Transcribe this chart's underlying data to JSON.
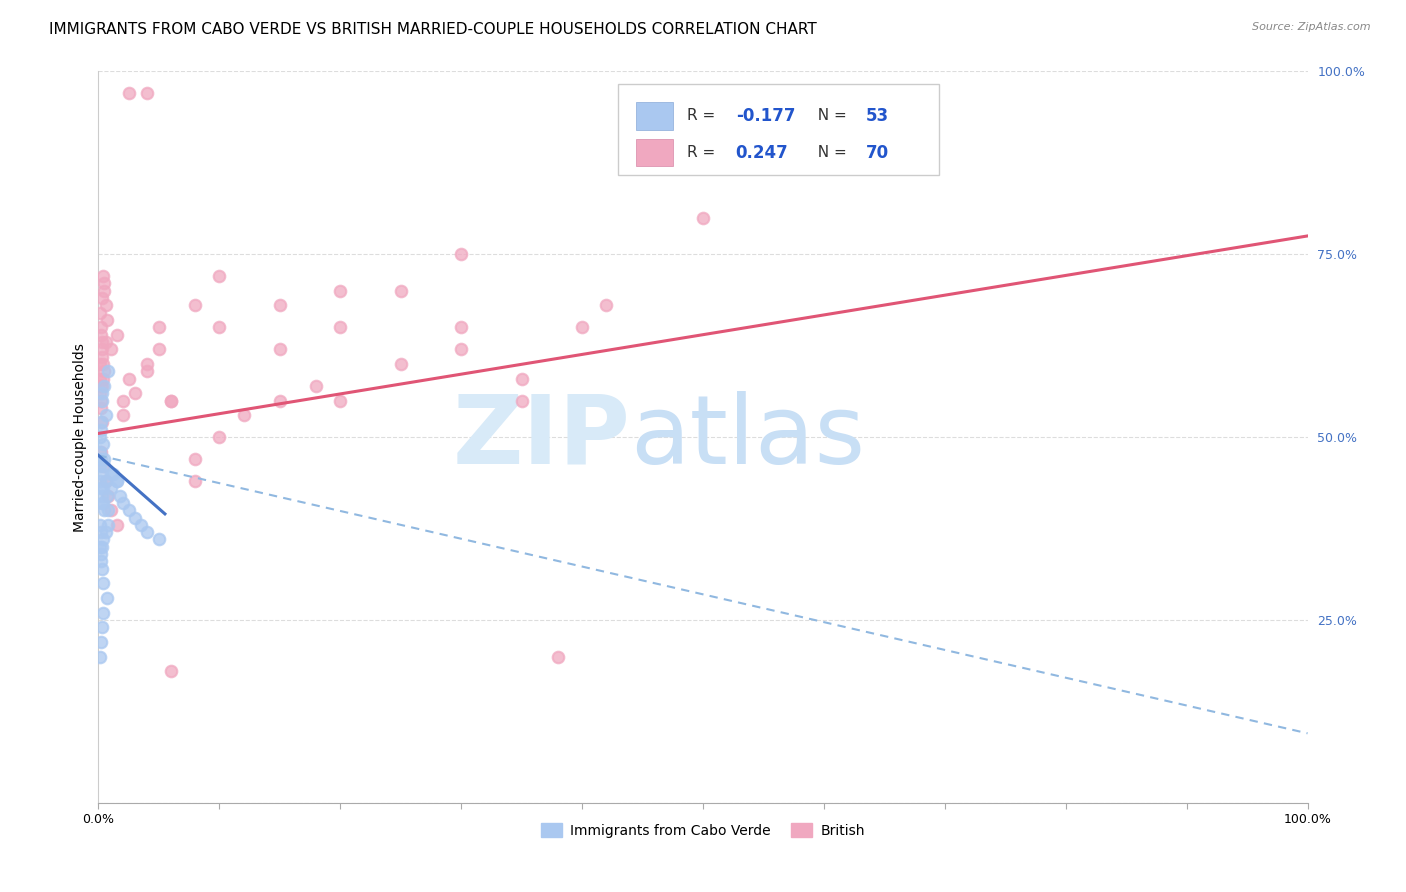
{
  "title": "IMMIGRANTS FROM CABO VERDE VS BRITISH MARRIED-COUPLE HOUSEHOLDS CORRELATION CHART",
  "source": "Source: ZipAtlas.com",
  "ylabel": "Married-couple Households",
  "y_ticks": [
    0.0,
    0.25,
    0.5,
    0.75,
    1.0
  ],
  "y_tick_labels": [
    "",
    "25.0%",
    "50.0%",
    "75.0%",
    "100.0%"
  ],
  "x_ticks": [
    0.0,
    0.1,
    0.2,
    0.3,
    0.4,
    0.5,
    0.6,
    0.7,
    0.8,
    0.9,
    1.0
  ],
  "x_tick_labels": [
    "0.0%",
    "",
    "",
    "",
    "",
    "",
    "",
    "",
    "",
    "",
    "100.0%"
  ],
  "cabo_verde_x": [
    0.001,
    0.002,
    0.003,
    0.001,
    0.005,
    0.006,
    0.003,
    0.002,
    0.008,
    0.004,
    0.001,
    0.002,
    0.003,
    0.005,
    0.001,
    0.007,
    0.004,
    0.003,
    0.002,
    0.001,
    0.006,
    0.004,
    0.005,
    0.003,
    0.002,
    0.008,
    0.012,
    0.015,
    0.01,
    0.018,
    0.02,
    0.025,
    0.03,
    0.035,
    0.04,
    0.05,
    0.001,
    0.002,
    0.003,
    0.004,
    0.005,
    0.003,
    0.002,
    0.004,
    0.006,
    0.008,
    0.01,
    0.015,
    0.001,
    0.002,
    0.003,
    0.004,
    0.007
  ],
  "cabo_verde_y": [
    0.48,
    0.52,
    0.55,
    0.5,
    0.57,
    0.53,
    0.56,
    0.51,
    0.59,
    0.49,
    0.44,
    0.43,
    0.42,
    0.4,
    0.38,
    0.42,
    0.41,
    0.45,
    0.37,
    0.46,
    0.44,
    0.43,
    0.46,
    0.41,
    0.47,
    0.4,
    0.45,
    0.44,
    0.43,
    0.42,
    0.41,
    0.4,
    0.39,
    0.38,
    0.37,
    0.36,
    0.35,
    0.34,
    0.32,
    0.3,
    0.47,
    0.35,
    0.33,
    0.36,
    0.37,
    0.38,
    0.45,
    0.44,
    0.2,
    0.22,
    0.24,
    0.26,
    0.28
  ],
  "british_x": [
    0.001,
    0.002,
    0.003,
    0.001,
    0.005,
    0.006,
    0.003,
    0.002,
    0.004,
    0.001,
    0.002,
    0.003,
    0.005,
    0.001,
    0.007,
    0.004,
    0.003,
    0.002,
    0.006,
    0.004,
    0.005,
    0.003,
    0.002,
    0.01,
    0.015,
    0.02,
    0.025,
    0.03,
    0.04,
    0.05,
    0.06,
    0.08,
    0.1,
    0.15,
    0.2,
    0.25,
    0.3,
    0.35,
    0.4,
    0.15,
    0.2,
    0.1,
    0.05,
    0.08,
    0.003,
    0.002,
    0.004,
    0.006,
    0.008,
    0.01,
    0.015,
    0.02,
    0.04,
    0.06,
    0.1,
    0.15,
    0.2,
    0.3,
    0.38,
    0.42,
    0.3,
    0.25,
    0.35,
    0.18,
    0.12,
    0.08,
    0.025,
    0.04,
    0.06,
    0.5
  ],
  "british_y": [
    0.6,
    0.65,
    0.63,
    0.58,
    0.7,
    0.68,
    0.62,
    0.55,
    0.72,
    0.67,
    0.64,
    0.61,
    0.59,
    0.56,
    0.66,
    0.6,
    0.57,
    0.54,
    0.63,
    0.58,
    0.71,
    0.69,
    0.57,
    0.62,
    0.64,
    0.55,
    0.58,
    0.56,
    0.6,
    0.62,
    0.55,
    0.68,
    0.65,
    0.62,
    0.55,
    0.6,
    0.62,
    0.58,
    0.65,
    0.68,
    0.7,
    0.72,
    0.65,
    0.44,
    0.52,
    0.48,
    0.46,
    0.44,
    0.42,
    0.4,
    0.38,
    0.53,
    0.59,
    0.55,
    0.5,
    0.55,
    0.65,
    0.65,
    0.2,
    0.68,
    0.75,
    0.7,
    0.55,
    0.57,
    0.53,
    0.47,
    0.97,
    0.97,
    0.18,
    0.8
  ],
  "cabo_verde_trend_x": [
    0.0,
    0.055
  ],
  "cabo_verde_trend_y": [
    0.475,
    0.395
  ],
  "british_trend_x": [
    0.0,
    1.0
  ],
  "british_trend_y": [
    0.505,
    0.775
  ],
  "dashed_trend_x": [
    0.0,
    1.0
  ],
  "dashed_trend_y": [
    0.475,
    0.095
  ],
  "bg_color": "#ffffff",
  "grid_color": "#dddddd",
  "dot_size": 70,
  "cabo_verde_dot_color": "#aac8f0",
  "british_dot_color": "#f0a8c0",
  "cabo_verde_line_color": "#4472c4",
  "british_line_color": "#e05575",
  "dashed_line_color": "#90b8e0",
  "watermark_zip": "ZIP",
  "watermark_atlas": "atlas",
  "watermark_color_zip": "#d8eaf8",
  "watermark_color_atlas": "#c8dff5",
  "title_fontsize": 11,
  "axis_label_fontsize": 10,
  "tick_fontsize": 9,
  "legend_R1": "-0.177",
  "legend_N1": "53",
  "legend_R2": "0.247",
  "legend_N2": "70",
  "legend_label1": "Immigrants from Cabo Verde",
  "legend_label2": "British"
}
